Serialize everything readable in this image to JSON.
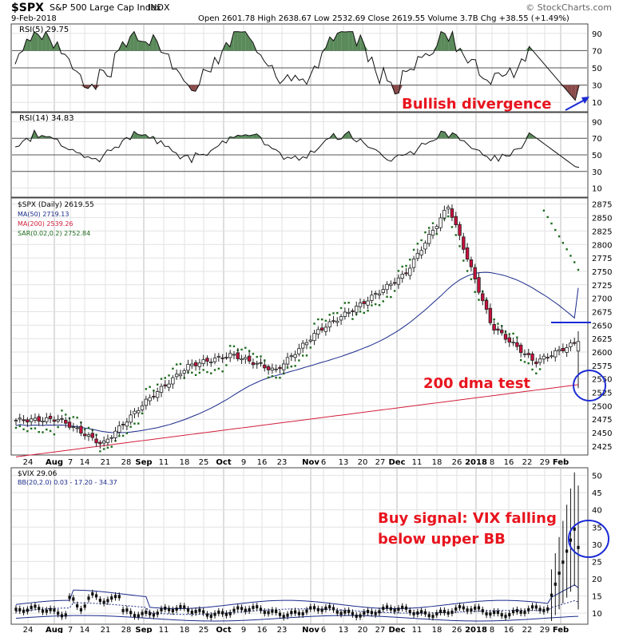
{
  "header": {
    "symbol": "$SPX",
    "name": "S&P 500 Large Cap Index",
    "exchange": "INDX",
    "date": "9-Feb-2018",
    "quote": "Open 2601.78  High 2638.67  Low 2532.69  Close 2619.55  Volume 3.7B  Chg +38.55 (+1.49%)",
    "watermark": "© StockCharts.com"
  },
  "annotations": {
    "rsi5": "Bullish divergence",
    "price": "200 dma test",
    "vix_line1": "Buy signal: VIX falling",
    "vix_line2": "below upper BB"
  },
  "colors": {
    "frame": "#444444",
    "grid": "#d4d4d4",
    "up_candle": "#ffffff",
    "down_candle": "#c8103c",
    "ma50": "#1a2a8a",
    "ma200": "#d21e3c",
    "sar": "#1c6b1c",
    "rsi_fill_high": "#5a8a5a",
    "rsi_fill_low": "#8a4a4a",
    "annotation_red": "#e8141e",
    "annotation_blue": "#1a2ad4"
  },
  "chart_data": [
    {
      "type": "line",
      "panel": "RSI(5)",
      "legend": "RSI(5) 29.75",
      "ylim": [
        0,
        100
      ],
      "y_ticks": [
        10,
        30,
        50,
        70,
        90
      ],
      "reference_lines": [
        30,
        50,
        70
      ],
      "last_value": 29.75
    },
    {
      "type": "line",
      "panel": "RSI(14)",
      "legend": "RSI(14) 34.83",
      "ylim": [
        0,
        100
      ],
      "y_ticks": [
        10,
        30,
        50,
        70,
        90
      ],
      "reference_lines": [
        30,
        50,
        70
      ],
      "last_value": 34.83
    },
    {
      "type": "candlestick",
      "panel": "$SPX (Daily)",
      "legend": [
        "$SPX (Daily) 2619.55",
        "MA(50) 2719.13",
        "MA(200) 2539.26",
        "SAR(0.02,0.2) 2752.84"
      ],
      "ylim": [
        2410,
        2885
      ],
      "y_ticks": [
        2425,
        2450,
        2475,
        2500,
        2525,
        2550,
        2575,
        2600,
        2625,
        2650,
        2675,
        2700,
        2725,
        2750,
        2775,
        2800,
        2825,
        2850,
        2875
      ],
      "x_labels": [
        "24",
        "Aug",
        "7",
        "14",
        "21",
        "28",
        "Sep",
        "11",
        "18",
        "25",
        "Oct",
        "9",
        "16",
        "23",
        "Nov",
        "6",
        "13",
        "20",
        "27",
        "Dec",
        "11",
        "18",
        "26",
        "2018",
        "8",
        "16",
        "22",
        "29",
        "Feb"
      ],
      "series": [
        {
          "name": "$SPX",
          "last": 2619.55,
          "open": 2601.78,
          "high": 2638.67,
          "low": 2532.69,
          "close": 2619.55
        },
        {
          "name": "MA(50)",
          "last": 2719.13
        },
        {
          "name": "MA(200)",
          "last": 2539.26
        },
        {
          "name": "SAR(0.02,0.2)",
          "last": 2752.84
        }
      ],
      "key_points": [
        {
          "date": "Jul 20",
          "close": 2473
        },
        {
          "date": "Aug 8",
          "close": 2475
        },
        {
          "date": "Aug 21",
          "close": 2428
        },
        {
          "date": "Sep 20",
          "close": 2508
        },
        {
          "date": "Oct 20",
          "close": 2575
        },
        {
          "date": "Nov 8",
          "close": 2595
        },
        {
          "date": "Nov 15",
          "close": 2565
        },
        {
          "date": "Dec 4",
          "close": 2640
        },
        {
          "date": "Dec 18",
          "close": 2690
        },
        {
          "date": "Jan 5",
          "close": 2745
        },
        {
          "date": "Jan 26",
          "close": 2872
        },
        {
          "date": "Feb 5",
          "close": 2648
        },
        {
          "date": "Feb 8",
          "close": 2581
        },
        {
          "date": "Feb 9",
          "close": 2619.55
        }
      ],
      "marker_level": 2650
    },
    {
      "type": "line",
      "panel": "$VIX",
      "legend": [
        "$VIX 29.06",
        "BB(20,2.0) 0.03 - 17.20 - 34.37"
      ],
      "ylim": [
        7,
        52
      ],
      "y_ticks": [
        10,
        15,
        20,
        25,
        30,
        35,
        40,
        45,
        50
      ],
      "x_labels": [
        "24",
        "Aug",
        "7",
        "14",
        "21",
        "28",
        "Sep",
        "11",
        "18",
        "25",
        "Oct",
        "9",
        "16",
        "23",
        "Nov",
        "6",
        "13",
        "20",
        "27",
        "Dec",
        "11",
        "18",
        "26",
        "2018",
        "8",
        "16",
        "22",
        "29",
        "Feb"
      ],
      "series": [
        {
          "name": "$VIX",
          "last": 29.06
        },
        {
          "name": "BB(20,2.0)",
          "lower": 0.03,
          "middle": 17.2,
          "upper": 34.37
        }
      ]
    }
  ]
}
